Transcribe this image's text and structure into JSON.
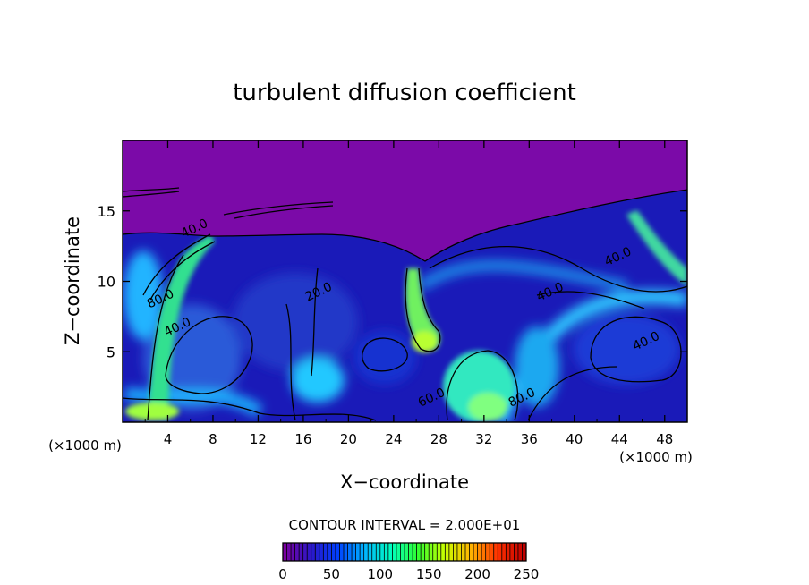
{
  "chart_data": {
    "type": "heatmap",
    "title": "turbulent diffusion coefficient",
    "xlabel": "X−coordinate",
    "ylabel": "Z−coordinate",
    "x_unit": "(×1000 m)",
    "y_unit": "(×1000 m)",
    "xlim": [
      0,
      50
    ],
    "ylim": [
      0,
      20
    ],
    "x_ticks": [
      4,
      8,
      12,
      16,
      20,
      24,
      28,
      32,
      36,
      40,
      44,
      48
    ],
    "y_ticks": [
      5,
      10,
      15
    ],
    "contour_interval_text": "CONTOUR INTERVAL = 2.000E+01",
    "colorbar": {
      "range": [
        0,
        250
      ],
      "tick_values": [
        0,
        50,
        100,
        150,
        200,
        250
      ],
      "colors": [
        "#7a00a0",
        "#2a17c8",
        "#0040ff",
        "#00b4ff",
        "#00ffc0",
        "#30ff30",
        "#c8ff00",
        "#ffb400",
        "#ff3000",
        "#c00000"
      ]
    },
    "contour_labels": [
      {
        "text": "40.0",
        "x": 6.5,
        "z": 13.5
      },
      {
        "text": "80.0",
        "x": 3.5,
        "z": 8.5
      },
      {
        "text": "40.0",
        "x": 5.0,
        "z": 6.5
      },
      {
        "text": "20.0",
        "x": 17.5,
        "z": 9.0
      },
      {
        "text": "40.0",
        "x": 44.0,
        "z": 11.5
      },
      {
        "text": "40.0",
        "x": 38.0,
        "z": 9.0
      },
      {
        "text": "40.0",
        "x": 46.5,
        "z": 5.5
      },
      {
        "text": "60.0",
        "x": 27.5,
        "z": 1.5
      },
      {
        "text": "80.0",
        "x": 35.5,
        "z": 1.5
      }
    ],
    "regions": [
      {
        "name": "upper-quiet-layer",
        "value": 0
      },
      {
        "name": "left-jet",
        "value": 110
      },
      {
        "name": "center-plume",
        "value": 120
      },
      {
        "name": "bottom-center-cell",
        "value": 130
      },
      {
        "name": "right-mixing-band",
        "value": 80
      }
    ]
  }
}
